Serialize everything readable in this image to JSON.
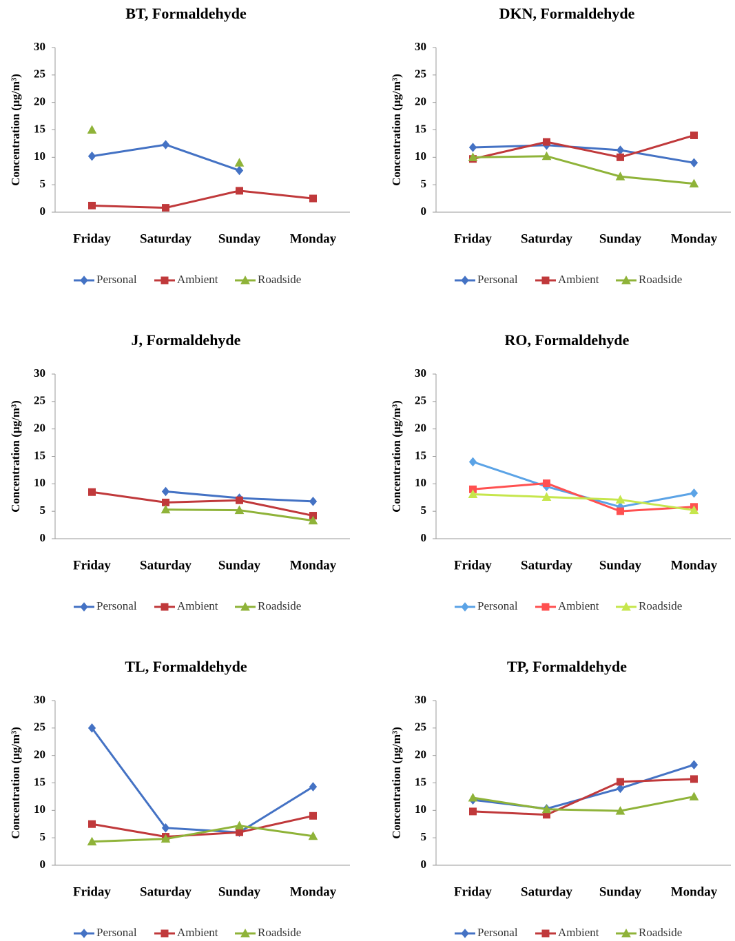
{
  "chart_data": [
    {
      "type": "line",
      "title": "BT, Formaldehyde",
      "y_label": "Concentration (µg/m³)",
      "categories": [
        "Friday",
        "Saturday",
        "Sunday",
        "Monday"
      ],
      "series": [
        {
          "name": "Personal",
          "color": "#4472c4",
          "marker": "diamond",
          "values": [
            10.2,
            12.3,
            7.6,
            null
          ]
        },
        {
          "name": "Ambient",
          "color": "#c0393b",
          "marker": "square",
          "values": [
            1.2,
            0.8,
            3.9,
            2.5
          ]
        },
        {
          "name": "Roadside",
          "color": "#8fb339",
          "marker": "triangle",
          "values": [
            15,
            null,
            9,
            null
          ]
        }
      ],
      "ylim": [
        0,
        30
      ],
      "yticks": [
        0,
        5,
        10,
        15,
        20,
        25,
        30
      ],
      "legend": "bottom"
    },
    {
      "type": "line",
      "title": "DKN, Formaldehyde",
      "y_label": "Concentration (µg/m³)",
      "categories": [
        "Friday",
        "Saturday",
        "Sunday",
        "Monday"
      ],
      "series": [
        {
          "name": "Personal",
          "color": "#4472c4",
          "marker": "diamond",
          "values": [
            11.8,
            12.2,
            11.3,
            9
          ]
        },
        {
          "name": "Ambient",
          "color": "#c0393b",
          "marker": "square",
          "values": [
            9.7,
            12.8,
            10,
            14
          ]
        },
        {
          "name": "Roadside",
          "color": "#8fb339",
          "marker": "triangle",
          "values": [
            10,
            10.2,
            6.5,
            5.2
          ]
        }
      ],
      "ylim": [
        0,
        30
      ],
      "yticks": [
        0,
        5,
        10,
        15,
        20,
        25,
        30
      ],
      "legend": "bottom"
    },
    {
      "type": "line",
      "title": "J, Formaldehyde",
      "y_label": "Concentration (µg/m³)",
      "categories": [
        "Friday",
        "Saturday",
        "Sunday",
        "Monday"
      ],
      "series": [
        {
          "name": "Personal",
          "color": "#4472c4",
          "marker": "diamond",
          "values": [
            null,
            8.6,
            7.4,
            6.8
          ]
        },
        {
          "name": "Ambient",
          "color": "#c0393b",
          "marker": "square",
          "values": [
            8.5,
            6.6,
            7,
            4.2
          ]
        },
        {
          "name": "Roadside",
          "color": "#8fb339",
          "marker": "triangle",
          "values": [
            null,
            5.3,
            5.2,
            3.3
          ]
        }
      ],
      "ylim": [
        0,
        30
      ],
      "yticks": [
        0,
        5,
        10,
        15,
        20,
        25,
        30
      ],
      "legend": "bottom"
    },
    {
      "type": "line",
      "title": "RO, Formaldehyde",
      "y_label": "Concentration (µg/m³)",
      "categories": [
        "Friday",
        "Saturday",
        "Sunday",
        "Monday"
      ],
      "series": [
        {
          "name": "Personal",
          "color": "#5ba3e6",
          "marker": "diamond",
          "values": [
            14,
            9.5,
            5.8,
            8.3
          ]
        },
        {
          "name": "Ambient",
          "color": "#ff5050",
          "marker": "square",
          "values": [
            9,
            10.1,
            5,
            5.8
          ]
        },
        {
          "name": "Roadside",
          "color": "#c6e64c",
          "marker": "triangle",
          "values": [
            8.1,
            7.6,
            7.1,
            5.2
          ]
        }
      ],
      "ylim": [
        0,
        30
      ],
      "yticks": [
        0,
        5,
        10,
        15,
        20,
        25,
        30
      ],
      "legend": "bottom"
    },
    {
      "type": "line",
      "title": "TL, Formaldehyde",
      "y_label": "Concentration (µg/m³)",
      "categories": [
        "Friday",
        "Saturday",
        "Sunday",
        "Monday"
      ],
      "series": [
        {
          "name": "Personal",
          "color": "#4472c4",
          "marker": "diamond",
          "values": [
            25,
            6.8,
            6,
            14.3
          ]
        },
        {
          "name": "Ambient",
          "color": "#c0393b",
          "marker": "square",
          "values": [
            7.5,
            5.2,
            6,
            9
          ]
        },
        {
          "name": "Roadside",
          "color": "#8fb339",
          "marker": "triangle",
          "values": [
            4.3,
            4.8,
            7.2,
            5.3
          ]
        }
      ],
      "ylim": [
        0,
        30
      ],
      "yticks": [
        0,
        5,
        10,
        15,
        20,
        25,
        30
      ],
      "legend": "bottom"
    },
    {
      "type": "line",
      "title": "TP, Formaldehyde",
      "y_label": "Concentration (µg/m³)",
      "categories": [
        "Friday",
        "Saturday",
        "Sunday",
        "Monday"
      ],
      "series": [
        {
          "name": "Personal",
          "color": "#4472c4",
          "marker": "diamond",
          "values": [
            11.9,
            10.3,
            14,
            18.3
          ]
        },
        {
          "name": "Ambient",
          "color": "#c0393b",
          "marker": "square",
          "values": [
            9.8,
            9.2,
            15.2,
            15.7
          ]
        },
        {
          "name": "Roadside",
          "color": "#8fb339",
          "marker": "triangle",
          "values": [
            12.3,
            10.2,
            9.9,
            12.5
          ]
        }
      ],
      "ylim": [
        0,
        30
      ],
      "yticks": [
        0,
        5,
        10,
        15,
        20,
        25,
        30
      ],
      "legend": "bottom"
    }
  ]
}
